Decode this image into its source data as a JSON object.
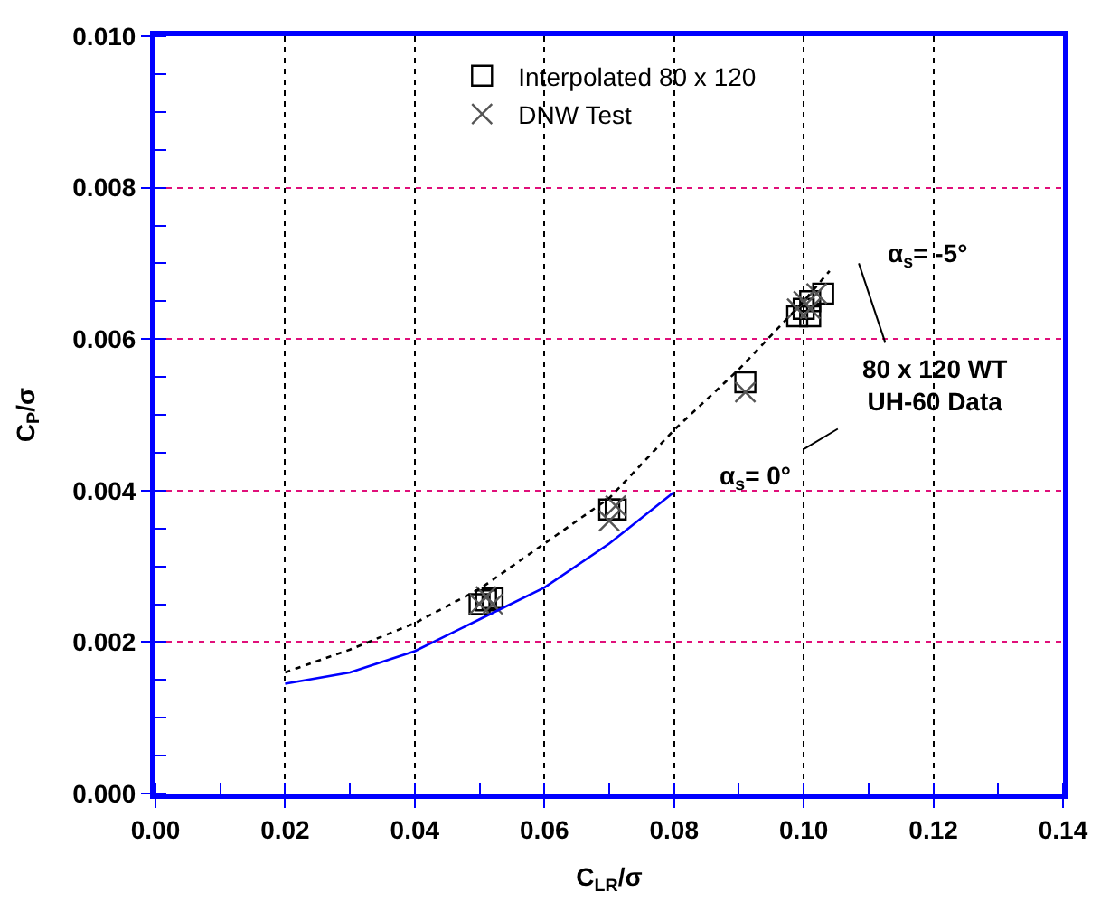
{
  "chart_data": {
    "type": "scatter",
    "xlabel": "C$_{LR}$/σ",
    "ylabel": "C$_{P}$/σ",
    "xlim": [
      0.0,
      0.14
    ],
    "xticks": [
      {
        "value": 0,
        "label": "0.00"
      },
      0.02,
      0.04,
      0.06,
      0.08,
      {
        "value": 0.1,
        "label": "0.10"
      },
      0.12,
      0.14
    ],
    "ylim": [
      0.0,
      0.01
    ],
    "yticks": [
      {
        "value": 0,
        "label": "0.000"
      },
      0.002,
      0.004,
      0.006,
      0.008,
      {
        "value": 0.01,
        "label": "0.010"
      }
    ],
    "grid": true,
    "legend": "top",
    "series": [
      {
        "name": "Interpolated 80 x 120",
        "marker": "square",
        "color": "#000000",
        "x": [
          0.05,
          0.051,
          0.052,
          0.07,
          0.071,
          0.091,
          0.099,
          0.1,
          0.101,
          0.101,
          0.103
        ],
        "values": [
          0.0025,
          0.00255,
          0.00258,
          0.00375,
          0.00375,
          0.00543,
          0.0063,
          0.0064,
          0.0063,
          0.0065,
          0.0066
        ]
      },
      {
        "name": "DNW Test",
        "marker": "cross",
        "color": "#555555",
        "x": [
          0.05,
          0.051,
          0.052,
          0.07,
          0.071,
          0.091,
          0.099,
          0.1,
          0.101,
          0.102
        ],
        "values": [
          0.0025,
          0.0026,
          0.0025,
          0.0036,
          0.0038,
          0.0053,
          0.0064,
          0.0065,
          0.0064,
          0.0066
        ]
      },
      {
        "type": "line",
        "line_style": "dotted",
        "marker": "none",
        "color": "#000000",
        "x": [
          0.02,
          0.03,
          0.04,
          0.05,
          0.06,
          0.07,
          0.08,
          0.09,
          0.1,
          0.104
        ],
        "values": [
          0.0016,
          0.0019,
          0.00225,
          0.0027,
          0.0033,
          0.0039,
          0.0048,
          0.0056,
          0.0065,
          0.0069
        ]
      },
      {
        "type": "line",
        "line_style": "solid",
        "marker": "none",
        "color": "#0000ff",
        "x": [
          0.02,
          0.03,
          0.04,
          0.05,
          0.06,
          0.07,
          0.08
        ],
        "values": [
          0.00145,
          0.0016,
          0.00188,
          0.0023,
          0.00272,
          0.0033,
          0.00398
        ]
      }
    ],
    "annotations": [
      {
        "text": "α$_{s}$= -5°",
        "x": 0.104,
        "y": 0.0069
      },
      "80 x 120 WT\nUH-60 Data",
      {
        "text": "α$_{s}$= 0°",
        "x": 0.08,
        "y": 0.00398
      }
    ]
  }
}
